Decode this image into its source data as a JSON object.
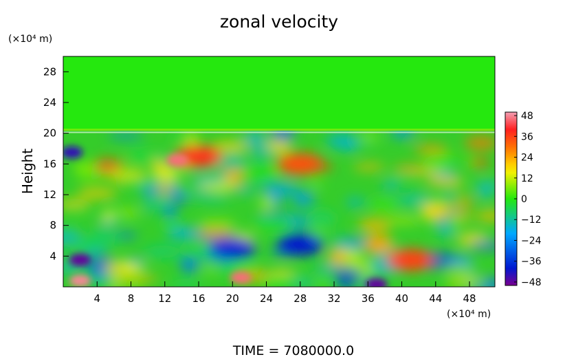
{
  "chart_data": {
    "type": "heatmap",
    "title": "zonal velocity",
    "ylabel": "Height",
    "y_unit": "(×10⁴ m)",
    "x_unit": "(×10⁴ m)",
    "footer": "TIME  =  7080000.0",
    "x_range": [
      0,
      51
    ],
    "y_range": [
      0,
      30
    ],
    "x_ticks": [
      "4",
      "8",
      "12",
      "16",
      "20",
      "24",
      "28",
      "32",
      "36",
      "40",
      "44",
      "48"
    ],
    "y_ticks": [
      "4",
      "8",
      "12",
      "16",
      "20",
      "24",
      "28"
    ],
    "colorbar": {
      "min": -50,
      "max": 50,
      "tick_labels": [
        "48",
        "36",
        "24",
        "12",
        "0",
        "−12",
        "−24",
        "−36",
        "−48"
      ],
      "tick_values": [
        48,
        36,
        24,
        12,
        0,
        -12,
        -24,
        -36,
        -48
      ]
    },
    "grid": false,
    "colors": {
      "neg_max": "#7a0090",
      "neg_dark": "#0018d0",
      "neg_mid": "#00a8ff",
      "zero": "#25e80e",
      "pos_mid": "#fff200",
      "pos_high": "#ff8000",
      "pos_max": "#ff2020",
      "pos_extreme": "#f4a0b4"
    },
    "field_regions": [
      {
        "label": "upper uniform layer",
        "y_from": 20.5,
        "y_to": 30,
        "value": 0
      },
      {
        "label": "upper jet",
        "x_center": 16,
        "y_center": 17,
        "value": 38
      },
      {
        "label": "jet maximum",
        "x_center": 13.5,
        "y_center": 16.5,
        "value": 46
      },
      {
        "label": "upper jet east",
        "x_center": 28,
        "y_center": 16,
        "value": 34
      },
      {
        "label": "left upper westward",
        "x_center": 1,
        "y_center": 17.5,
        "value": -44
      },
      {
        "label": "lower left westward",
        "x_center": 2,
        "y_center": 3.5,
        "value": -48
      },
      {
        "label": "lower westward 1",
        "x_center": 20,
        "y_center": 5,
        "value": -38
      },
      {
        "label": "lower westward 2",
        "x_center": 28,
        "y_center": 5.5,
        "value": -40
      },
      {
        "label": "lower eastward",
        "x_center": 41,
        "y_center": 3.5,
        "value": 36
      },
      {
        "label": "bottom eastward",
        "x_center": 21,
        "y_center": 1.2,
        "value": 46
      },
      {
        "label": "bottom westward",
        "x_center": 37,
        "y_center": 0.3,
        "value": -48
      },
      {
        "label": "bottom left eastward",
        "x_center": 2,
        "y_center": 0.8,
        "value": 48
      }
    ]
  }
}
